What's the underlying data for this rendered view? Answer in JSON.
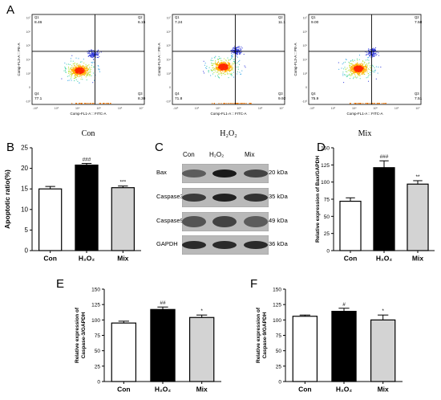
{
  "panel_labels": {
    "a": "A",
    "b": "B",
    "c": "C",
    "d": "D",
    "e": "E",
    "f": "F"
  },
  "flow": {
    "x_axis_label": "Comp-FL1-A :: FITC-A",
    "y_axis_label": "Comp-FL3-A :: PE-A",
    "x_ticks": [
      "-10³",
      "10³",
      "10⁴",
      "10⁵",
      "10⁶",
      "10⁷"
    ],
    "y_ticks": [
      "10⁷",
      "10⁶",
      "10⁵",
      "10⁴",
      "10³",
      "0",
      "-10³"
    ],
    "plots": [
      {
        "caption": "Con",
        "q1_label": "Q1",
        "q1": "8.46",
        "q2_label": "Q2",
        "q2": "6.15",
        "q3_label": "Q3",
        "q3": "8.30",
        "q4_label": "Q4",
        "q4": "77.1"
      },
      {
        "caption": "H₂O₂",
        "q1_label": "Q1",
        "q1": "7.24",
        "q2_label": "Q2",
        "q2": "11.1",
        "q3_label": "Q3",
        "q3": "9.92",
        "q4_label": "Q4",
        "q4": "71.8"
      },
      {
        "caption": "Mix",
        "q1_label": "Q1",
        "q1": "9.00",
        "q2_label": "Q2",
        "q2": "7.58",
        "q3_label": "Q3",
        "q3": "7.51",
        "q4_label": "Q4",
        "q4": "75.9"
      }
    ]
  },
  "western_blot": {
    "lane_labels": [
      "Con",
      "H₂O₂",
      "Mix"
    ],
    "bands": [
      {
        "protein": "Bax",
        "size": "20 kDa"
      },
      {
        "protein": "Caspase3",
        "size": "35 kDa"
      },
      {
        "protein": "Caspase9",
        "size": "49 kDa"
      },
      {
        "protein": "GAPDH",
        "size": "36 kDa"
      }
    ]
  },
  "chart_data": [
    {
      "panel": "B",
      "type": "bar",
      "categories": [
        "Con",
        "H₂O₂",
        "Mix"
      ],
      "values": [
        15,
        20.8,
        15.3
      ],
      "errors": [
        0.6,
        0.4,
        0.4
      ],
      "significance": [
        "",
        "###",
        "***"
      ],
      "fills": [
        "#ffffff",
        "#000000",
        "#d3d3d3"
      ],
      "ylabel": "Apoptotic ratio(%)",
      "ylim": [
        0,
        25
      ],
      "yticks": [
        0,
        5,
        10,
        15,
        20,
        25
      ]
    },
    {
      "panel": "D",
      "type": "bar",
      "categories": [
        "Con",
        "H₂O₂",
        "Mix"
      ],
      "values": [
        72,
        121,
        97
      ],
      "errors": [
        5,
        10,
        5
      ],
      "significance": [
        "",
        "###",
        "**"
      ],
      "fills": [
        "#ffffff",
        "#000000",
        "#d3d3d3"
      ],
      "ylabel": "Relative expression of Bax/GAPDH",
      "ylim": [
        0,
        150
      ],
      "yticks": [
        0,
        25,
        50,
        75,
        100,
        125,
        150
      ]
    },
    {
      "panel": "E",
      "type": "bar",
      "categories": [
        "Con",
        "H₂O₂",
        "Mix"
      ],
      "values": [
        95,
        117,
        104
      ],
      "errors": [
        3,
        4,
        4
      ],
      "significance": [
        "",
        "##",
        "*"
      ],
      "fills": [
        "#ffffff",
        "#000000",
        "#d3d3d3"
      ],
      "ylabel_lines": [
        "Relative expression of",
        "Caspase-3/GAPDH"
      ],
      "ylim": [
        0,
        150
      ],
      "yticks": [
        0,
        25,
        50,
        75,
        100,
        125,
        150
      ]
    },
    {
      "panel": "F",
      "type": "bar",
      "categories": [
        "Con",
        "H₂O₂",
        "Mix"
      ],
      "values": [
        106,
        114,
        100
      ],
      "errors": [
        2,
        5,
        8
      ],
      "significance": [
        "",
        "#",
        "*"
      ],
      "fills": [
        "#ffffff",
        "#000000",
        "#d3d3d3"
      ],
      "ylabel_lines": [
        "Relative expression of",
        "Caspase-9/GAPDH"
      ],
      "ylim": [
        0,
        150
      ],
      "yticks": [
        0,
        25,
        50,
        75,
        100,
        125,
        150
      ]
    }
  ]
}
